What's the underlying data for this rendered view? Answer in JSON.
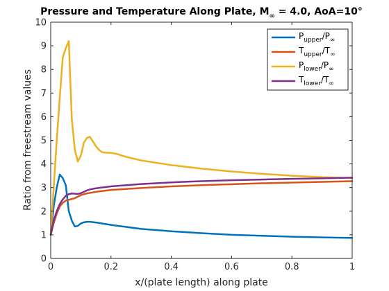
{
  "chart_data": {
    "type": "line",
    "title": {
      "main": "Pressure and Temperature Along Plate, M",
      "sub": "∞",
      "rest": " = 4.0, AoA=10°"
    },
    "xlabel": "x/(plate length) along plate",
    "ylabel": "Ratio from freestream values",
    "xlim": [
      0,
      1
    ],
    "ylim": [
      0,
      10
    ],
    "xticks": [
      0,
      0.2,
      0.4,
      0.6,
      0.8,
      1
    ],
    "xtick_labels": [
      "0",
      "0.2",
      "0.4",
      "0.6",
      "0.8",
      "1"
    ],
    "yticks": [
      0,
      1,
      2,
      3,
      4,
      5,
      6,
      7,
      8,
      9,
      10
    ],
    "ytick_labels": [
      "0",
      "1",
      "2",
      "3",
      "4",
      "5",
      "6",
      "7",
      "8",
      "9",
      "10"
    ],
    "grid": false,
    "legend_position": "top-right",
    "series": [
      {
        "legend": {
          "a": "P",
          "a_sub": "upper",
          "b": "/P",
          "b_sub": "∞"
        },
        "color": "#0072BD",
        "x": [
          0,
          0.01,
          0.02,
          0.03,
          0.04,
          0.05,
          0.06,
          0.07,
          0.08,
          0.09,
          0.1,
          0.11,
          0.12,
          0.13,
          0.15,
          0.2,
          0.3,
          0.4,
          0.5,
          0.6,
          0.7,
          0.8,
          0.9,
          1.0
        ],
        "y": [
          1.0,
          2.2,
          3.0,
          3.55,
          3.4,
          3.1,
          2.0,
          1.6,
          1.35,
          1.38,
          1.48,
          1.53,
          1.55,
          1.55,
          1.52,
          1.42,
          1.25,
          1.15,
          1.07,
          1.0,
          0.96,
          0.92,
          0.89,
          0.87
        ]
      },
      {
        "legend": {
          "a": "T",
          "a_sub": "upper",
          "b": "/T",
          "b_sub": "∞"
        },
        "color": "#D95319",
        "x": [
          0,
          0.01,
          0.02,
          0.03,
          0.04,
          0.05,
          0.06,
          0.08,
          0.1,
          0.12,
          0.15,
          0.2,
          0.3,
          0.4,
          0.5,
          0.6,
          0.7,
          0.8,
          0.9,
          1.0
        ],
        "y": [
          1.0,
          1.5,
          1.9,
          2.2,
          2.35,
          2.45,
          2.48,
          2.55,
          2.68,
          2.75,
          2.82,
          2.9,
          2.98,
          3.05,
          3.1,
          3.14,
          3.18,
          3.21,
          3.24,
          3.27
        ]
      },
      {
        "legend": {
          "a": "P",
          "a_sub": "lower",
          "b": "/P",
          "b_sub": "∞"
        },
        "color": "#EDB120",
        "x": [
          0,
          0.01,
          0.02,
          0.03,
          0.04,
          0.05,
          0.06,
          0.07,
          0.08,
          0.09,
          0.1,
          0.11,
          0.12,
          0.13,
          0.14,
          0.15,
          0.16,
          0.17,
          0.18,
          0.2,
          0.22,
          0.25,
          0.3,
          0.4,
          0.5,
          0.6,
          0.7,
          0.8,
          0.9,
          1.0
        ],
        "y": [
          1.0,
          3.0,
          5.0,
          6.8,
          8.5,
          8.9,
          9.2,
          5.9,
          4.6,
          4.1,
          4.35,
          4.9,
          5.1,
          5.15,
          4.95,
          4.75,
          4.6,
          4.5,
          4.48,
          4.47,
          4.42,
          4.3,
          4.15,
          3.95,
          3.8,
          3.68,
          3.58,
          3.5,
          3.44,
          3.4
        ]
      },
      {
        "legend": {
          "a": "T",
          "a_sub": "lower",
          "b": "/T",
          "b_sub": "∞"
        },
        "color": "#7E2F8E",
        "x": [
          0,
          0.01,
          0.02,
          0.03,
          0.04,
          0.05,
          0.06,
          0.07,
          0.08,
          0.09,
          0.1,
          0.11,
          0.12,
          0.13,
          0.15,
          0.2,
          0.3,
          0.4,
          0.5,
          0.6,
          0.7,
          0.8,
          0.9,
          1.0
        ],
        "y": [
          1.0,
          1.6,
          2.0,
          2.3,
          2.5,
          2.65,
          2.72,
          2.75,
          2.74,
          2.73,
          2.76,
          2.82,
          2.88,
          2.92,
          2.97,
          3.05,
          3.15,
          3.22,
          3.27,
          3.31,
          3.34,
          3.37,
          3.39,
          3.42
        ]
      }
    ]
  }
}
